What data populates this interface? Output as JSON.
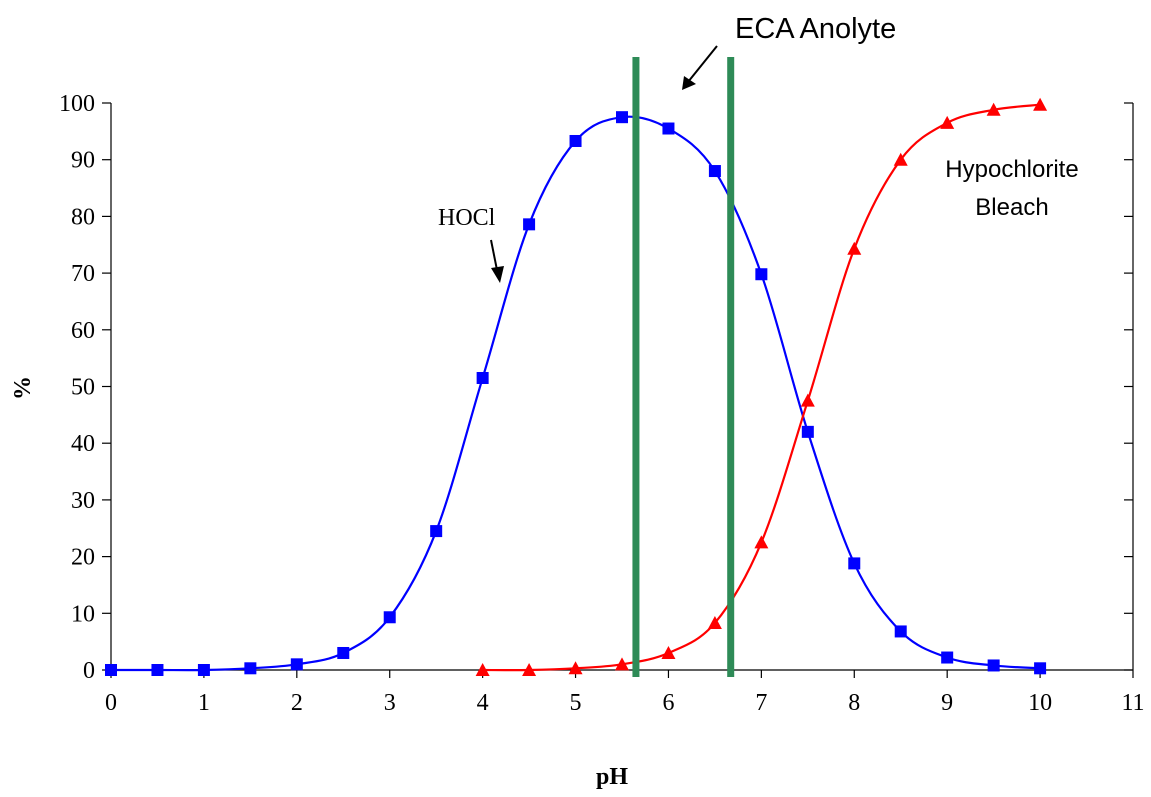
{
  "chart_data": {
    "type": "line",
    "title": "",
    "xlabel": "pH",
    "ylabel": "%",
    "xlim": [
      0,
      11
    ],
    "ylim": [
      0,
      100
    ],
    "x_ticks": [
      "0",
      "1",
      "2",
      "3",
      "4",
      "5",
      "6",
      "7",
      "8",
      "9",
      "10",
      "11"
    ],
    "y_ticks": [
      "0",
      "10",
      "20",
      "30",
      "40",
      "50",
      "60",
      "70",
      "80",
      "90",
      "100"
    ],
    "grid": false,
    "series": [
      {
        "name": "HOCl",
        "color": "#0000ff",
        "marker": "square",
        "x": [
          0,
          0.5,
          1,
          1.5,
          2,
          2.5,
          3,
          3.5,
          4,
          4.5,
          5,
          5.5,
          6,
          6.5,
          7,
          7.5,
          8,
          8.5,
          9,
          9.5,
          10
        ],
        "y": [
          0,
          0,
          0,
          0.3,
          1,
          3,
          9.3,
          24.5,
          51.5,
          78.6,
          93.3,
          97.5,
          95.5,
          88,
          69.8,
          42,
          18.8,
          6.8,
          2.2,
          0.8,
          0.3
        ]
      },
      {
        "name": "Hypochlorite Bleach",
        "color": "#ff0000",
        "marker": "triangle",
        "x": [
          4,
          4.5,
          5,
          5.5,
          6,
          6.5,
          7,
          7.5,
          8,
          8.5,
          9,
          9.5,
          10
        ],
        "y": [
          0,
          0,
          0.3,
          1,
          3,
          8.3,
          22.5,
          47.5,
          74.3,
          90,
          96.5,
          98.8,
          99.7
        ]
      }
    ],
    "vertical_lines": [
      {
        "x": 5.65,
        "color": "#2e8b57"
      },
      {
        "x": 6.67,
        "color": "#2e8b57"
      }
    ],
    "annotations": {
      "eca": "ECA Anolyte",
      "hocl": "HOCl",
      "bleach_line1": "Hypochlorite",
      "bleach_line2": "Bleach"
    }
  }
}
